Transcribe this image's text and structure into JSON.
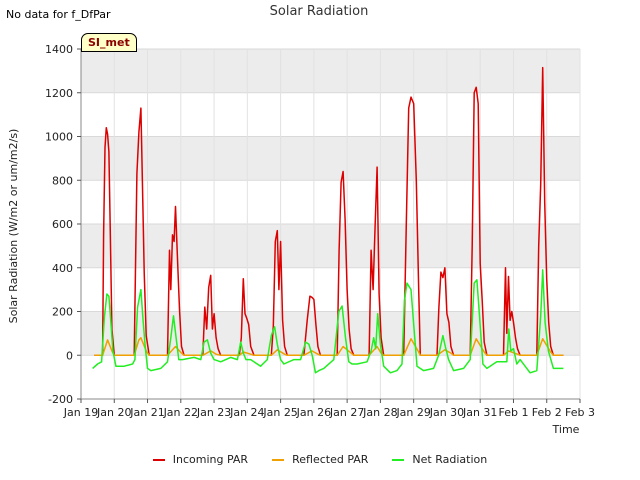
{
  "header": {
    "no_data_text": "No data for f_DfPar",
    "badge_label": "SI_met"
  },
  "chart_data": {
    "type": "line",
    "title": "Solar Radiation",
    "xlabel": "Time",
    "ylabel": "Solar Radiation (W/m2 or um/m2/s)",
    "xlim": [
      0,
      15
    ],
    "ylim": [
      -200,
      1400
    ],
    "x_ticks": [
      {
        "value": 0,
        "label": "Jan 19"
      },
      {
        "value": 1,
        "label": "Jan 20"
      },
      {
        "value": 2,
        "label": "Jan 21"
      },
      {
        "value": 3,
        "label": "Jan 22"
      },
      {
        "value": 4,
        "label": "Jan 23"
      },
      {
        "value": 5,
        "label": "Jan 24"
      },
      {
        "value": 6,
        "label": "Jan 25"
      },
      {
        "value": 7,
        "label": "Jan 26"
      },
      {
        "value": 8,
        "label": "Jan 27"
      },
      {
        "value": 9,
        "label": "Jan 28"
      },
      {
        "value": 10,
        "label": "Jan 29"
      },
      {
        "value": 11,
        "label": "Jan 30"
      },
      {
        "value": 12,
        "label": "Jan 31"
      },
      {
        "value": 13,
        "label": "Feb 1"
      },
      {
        "value": 14,
        "label": "Feb 2"
      },
      {
        "value": 15,
        "label": "Feb 3"
      }
    ],
    "y_ticks": [
      -200,
      0,
      200,
      400,
      600,
      800,
      1000,
      1200,
      1400
    ],
    "series": [
      {
        "name": "Incoming PAR",
        "color": "#dd0000",
        "x": [
          0.4,
          0.65,
          0.68,
          0.72,
          0.76,
          0.8,
          0.84,
          0.88,
          0.93,
          1.0,
          1.6,
          1.68,
          1.74,
          1.8,
          1.86,
          1.9,
          1.96,
          2.05,
          2.6,
          2.66,
          2.7,
          2.75,
          2.8,
          2.84,
          2.9,
          2.96,
          3.02,
          3.1,
          3.66,
          3.72,
          3.78,
          3.84,
          3.9,
          3.95,
          4.0,
          4.06,
          4.12,
          4.2,
          4.76,
          4.82,
          4.88,
          4.93,
          4.98,
          5.04,
          5.1,
          5.2,
          5.72,
          5.78,
          5.84,
          5.9,
          5.95,
          6.0,
          6.06,
          6.12,
          6.2,
          6.7,
          6.8,
          6.88,
          6.94,
          7.0,
          7.06,
          7.12,
          7.2,
          7.7,
          7.76,
          7.82,
          7.88,
          7.94,
          8.0,
          8.06,
          8.12,
          8.2,
          8.66,
          8.72,
          8.78,
          8.84,
          8.9,
          8.96,
          9.02,
          9.1,
          9.7,
          9.78,
          9.85,
          9.92,
          10.0,
          10.08,
          10.15,
          10.2,
          10.7,
          10.76,
          10.82,
          10.88,
          10.94,
          11.0,
          11.06,
          11.12,
          11.2,
          11.7,
          11.76,
          11.82,
          11.88,
          11.94,
          12.0,
          12.06,
          12.12,
          12.2,
          12.7,
          12.76,
          12.8,
          12.85,
          12.9,
          12.95,
          13.0,
          13.06,
          13.12,
          13.2,
          13.7,
          13.76,
          13.82,
          13.88,
          13.94,
          14.0,
          14.06,
          14.12,
          14.2,
          14.5
        ],
        "values": [
          0,
          0,
          550,
          950,
          1040,
          1010,
          930,
          560,
          120,
          0,
          0,
          830,
          1020,
          1130,
          680,
          380,
          90,
          0,
          0,
          480,
          300,
          550,
          520,
          680,
          440,
          210,
          40,
          0,
          0,
          220,
          120,
          310,
          365,
          120,
          190,
          80,
          30,
          0,
          0,
          80,
          350,
          190,
          170,
          140,
          40,
          0,
          0,
          130,
          520,
          570,
          300,
          520,
          160,
          40,
          0,
          0,
          160,
          270,
          265,
          255,
          140,
          40,
          0,
          0,
          480,
          790,
          840,
          620,
          300,
          120,
          30,
          0,
          0,
          480,
          300,
          590,
          860,
          280,
          80,
          0,
          0,
          600,
          1130,
          1180,
          1150,
          800,
          300,
          0,
          0,
          220,
          380,
          355,
          400,
          190,
          150,
          40,
          0,
          0,
          500,
          1200,
          1225,
          1150,
          420,
          250,
          60,
          0,
          0,
          400,
          100,
          360,
          160,
          200,
          150,
          80,
          30,
          0,
          0,
          500,
          780,
          1315,
          700,
          350,
          150,
          40,
          0,
          0
        ]
      },
      {
        "name": "Reflected PAR",
        "color": "#f0a000",
        "x": [
          0.4,
          0.65,
          0.8,
          0.93,
          1.0,
          1.6,
          1.74,
          1.8,
          1.96,
          2.05,
          2.6,
          2.84,
          3.02,
          3.1,
          3.66,
          3.9,
          4.06,
          4.2,
          4.76,
          4.88,
          5.1,
          5.2,
          5.72,
          5.9,
          6.12,
          6.2,
          6.7,
          6.94,
          7.12,
          7.2,
          7.7,
          7.88,
          8.12,
          8.2,
          8.66,
          8.9,
          9.02,
          9.1,
          9.7,
          9.92,
          10.15,
          10.2,
          10.7,
          10.94,
          11.12,
          11.2,
          11.7,
          11.88,
          12.12,
          12.2,
          12.7,
          12.85,
          13.12,
          13.2,
          13.7,
          13.88,
          14.12,
          14.2,
          14.5
        ],
        "values": [
          0,
          0,
          70,
          20,
          0,
          0,
          70,
          80,
          20,
          0,
          0,
          40,
          10,
          0,
          0,
          20,
          5,
          0,
          0,
          15,
          5,
          0,
          0,
          25,
          5,
          0,
          0,
          20,
          5,
          0,
          0,
          40,
          10,
          0,
          0,
          40,
          10,
          0,
          0,
          75,
          15,
          0,
          0,
          25,
          10,
          0,
          0,
          75,
          15,
          0,
          0,
          20,
          5,
          0,
          0,
          75,
          15,
          0,
          0
        ]
      },
      {
        "name": "Net Radiation",
        "color": "#22ee22",
        "x": [
          0.35,
          0.5,
          0.62,
          0.7,
          0.78,
          0.84,
          0.9,
          0.96,
          1.05,
          1.3,
          1.55,
          1.62,
          1.7,
          1.8,
          1.86,
          1.93,
          2.0,
          2.1,
          2.4,
          2.6,
          2.7,
          2.78,
          2.86,
          2.94,
          3.05,
          3.4,
          3.6,
          3.7,
          3.8,
          3.9,
          4.0,
          4.2,
          4.5,
          4.7,
          4.8,
          4.88,
          4.96,
          5.1,
          5.4,
          5.6,
          5.72,
          5.82,
          5.9,
          6.0,
          6.1,
          6.4,
          6.6,
          6.75,
          6.85,
          6.95,
          7.05,
          7.15,
          7.3,
          7.6,
          7.75,
          7.85,
          7.95,
          8.05,
          8.15,
          8.3,
          8.6,
          8.72,
          8.8,
          8.86,
          8.92,
          9.0,
          9.1,
          9.3,
          9.5,
          9.65,
          9.72,
          9.8,
          9.92,
          10.0,
          10.1,
          10.3,
          10.6,
          10.75,
          10.88,
          10.95,
          11.05,
          11.2,
          11.5,
          11.7,
          11.82,
          11.9,
          11.98,
          12.08,
          12.2,
          12.5,
          12.7,
          12.8,
          12.86,
          12.92,
          13.0,
          13.1,
          13.2,
          13.5,
          13.7,
          13.82,
          13.88,
          13.95,
          14.05,
          14.2,
          14.5
        ],
        "values": [
          -60,
          -40,
          -30,
          170,
          280,
          270,
          150,
          20,
          -50,
          -50,
          -40,
          -20,
          220,
          300,
          170,
          40,
          -60,
          -70,
          -60,
          -30,
          80,
          180,
          80,
          -20,
          -20,
          -10,
          -20,
          60,
          70,
          10,
          -20,
          -30,
          -10,
          -20,
          60,
          10,
          -20,
          -20,
          -50,
          -20,
          90,
          130,
          50,
          -20,
          -40,
          -20,
          -20,
          60,
          50,
          0,
          -80,
          -70,
          -60,
          -20,
          200,
          225,
          80,
          -30,
          -40,
          -40,
          -30,
          20,
          80,
          30,
          190,
          50,
          -50,
          -80,
          -70,
          -40,
          250,
          330,
          300,
          140,
          -50,
          -70,
          -60,
          0,
          90,
          40,
          -20,
          -70,
          -60,
          -20,
          330,
          345,
          180,
          -40,
          -60,
          -30,
          -30,
          -30,
          120,
          20,
          30,
          -40,
          -20,
          -80,
          -70,
          180,
          390,
          150,
          20,
          -60,
          -60
        ]
      }
    ]
  }
}
